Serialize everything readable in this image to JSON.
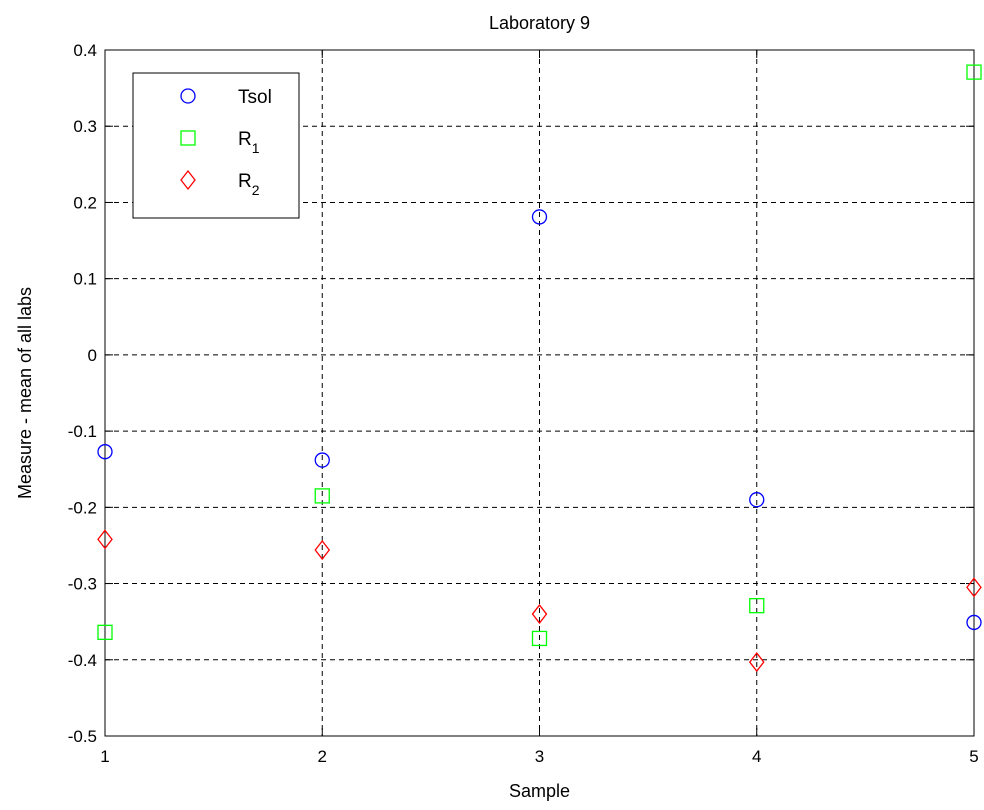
{
  "chart_data": {
    "type": "scatter",
    "title": "Laboratory 9",
    "xlabel": "Sample",
    "ylabel": "Measure - mean of all labs",
    "x": [
      1,
      2,
      3,
      4,
      5
    ],
    "xlim": [
      1,
      5
    ],
    "ylim": [
      -0.5,
      0.4
    ],
    "x_ticks": [
      "1",
      "2",
      "3",
      "4",
      "5"
    ],
    "y_ticks": [
      "-0.5",
      "-0.4",
      "-0.3",
      "-0.2",
      "-0.1",
      "0",
      "0.1",
      "0.2",
      "0.3",
      "0.4"
    ],
    "grid": true,
    "legend_position": "top-left",
    "series": [
      {
        "name": "Tsol",
        "label_main": "Tsol",
        "label_sub": "",
        "marker": "circle",
        "color": "#0000ff",
        "values": [
          -0.127,
          -0.138,
          0.181,
          -0.19,
          -0.351
        ]
      },
      {
        "name": "R1",
        "label_main": "R",
        "label_sub": "1",
        "marker": "square",
        "color": "#00ff00",
        "values": [
          -0.364,
          -0.185,
          -0.372,
          -0.329,
          0.371
        ]
      },
      {
        "name": "R2",
        "label_main": "R",
        "label_sub": "2",
        "marker": "diamond",
        "color": "#ff0000",
        "values": [
          -0.242,
          -0.256,
          -0.34,
          -0.403,
          -0.305
        ]
      }
    ]
  }
}
